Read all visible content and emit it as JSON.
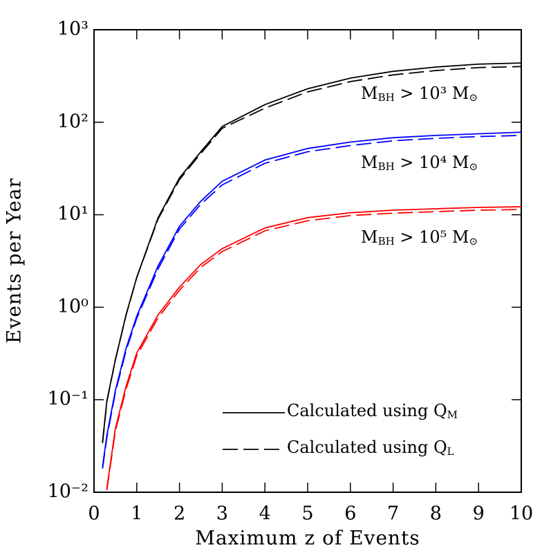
{
  "chart_data": {
    "type": "line",
    "xlabel": "Maximum z of Events",
    "ylabel": "Events per Year",
    "log_y": true,
    "xlim": [
      0,
      10
    ],
    "ylim": [
      0.01,
      1000
    ],
    "xticks": [
      0,
      1,
      2,
      3,
      4,
      5,
      6,
      7,
      8,
      9,
      10
    ],
    "yticks": [
      {
        "value": 0.01,
        "label": "10⁻²"
      },
      {
        "value": 0.1,
        "label": "10⁻¹"
      },
      {
        "value": 1,
        "label": "10⁰"
      },
      {
        "value": 10,
        "label": "10¹"
      },
      {
        "value": 100,
        "label": "10²"
      },
      {
        "value": 1000,
        "label": "10³"
      }
    ],
    "x": [
      0.2,
      0.3,
      0.5,
      0.75,
      1,
      1.5,
      2,
      2.5,
      3,
      4,
      5,
      6,
      7,
      8,
      9,
      10
    ],
    "series": [
      {
        "color": "#000000",
        "style": "solid",
        "values": [
          0.035,
          0.097,
          0.27,
          0.83,
          2.1,
          9.3,
          25,
          48,
          90,
          155,
          230,
          300,
          355,
          395,
          425,
          437
        ]
      },
      {
        "color": "#000000",
        "style": "dashed",
        "values": [
          0.034,
          0.095,
          0.27,
          0.82,
          2.1,
          9.0,
          24,
          46,
          86,
          142,
          213,
          275,
          325,
          362,
          390,
          400
        ]
      },
      {
        "color": "#0000ff",
        "style": "solid",
        "values": [
          0.019,
          0.041,
          0.126,
          0.36,
          0.8,
          2.8,
          7.5,
          14,
          23,
          39,
          52,
          61,
          68,
          72,
          75,
          78
        ]
      },
      {
        "color": "#0000ff",
        "style": "dashed",
        "values": [
          0.018,
          0.039,
          0.12,
          0.34,
          0.76,
          2.6,
          7.0,
          13,
          21,
          36,
          48,
          56,
          63,
          67,
          70,
          72
        ]
      },
      {
        "color": "#ff0000",
        "style": "solid",
        "values": [
          null,
          0.011,
          0.049,
          0.14,
          0.32,
          0.83,
          1.65,
          2.9,
          4.3,
          7.2,
          9.3,
          10.5,
          11.2,
          11.6,
          12.0,
          12.2
        ]
      },
      {
        "color": "#ff0000",
        "style": "dashed",
        "values": [
          null,
          0.0105,
          0.046,
          0.13,
          0.3,
          0.77,
          1.53,
          2.7,
          4.0,
          6.7,
          8.6,
          9.8,
          10.4,
          10.8,
          11.2,
          11.4
        ]
      }
    ],
    "annotations": [
      {
        "parts": [
          "M",
          "BH",
          " > 10³ M",
          "⊙"
        ]
      },
      {
        "parts": [
          "M",
          "BH",
          " > 10⁴ M",
          "⊙"
        ]
      },
      {
        "parts": [
          "M",
          "BH",
          " > 10⁵ M",
          "⊙"
        ]
      }
    ],
    "legend": [
      {
        "style": "solid",
        "parts": [
          "Calculated using Q",
          "M"
        ]
      },
      {
        "style": "dashed",
        "parts": [
          "Calculated using Q",
          "L"
        ]
      }
    ]
  }
}
